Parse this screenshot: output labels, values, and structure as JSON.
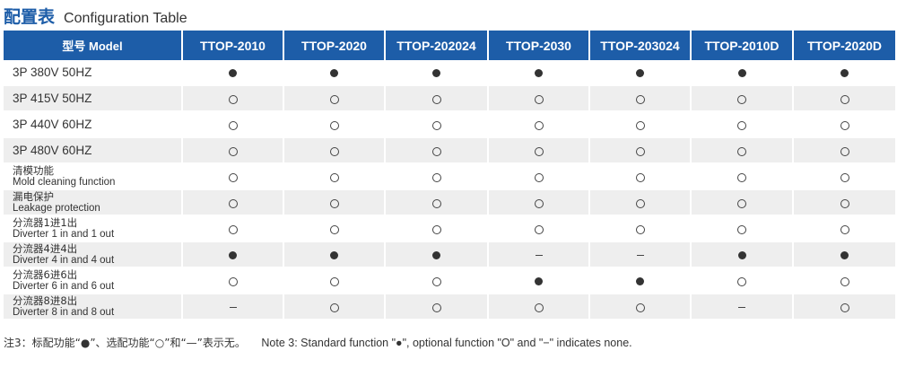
{
  "title": {
    "cn": "配置表",
    "en": "Configuration Table"
  },
  "table": {
    "header_label": "型号 Model",
    "columns": [
      "TTOP-2010",
      "TTOP-2020",
      "TTOP-202024",
      "TTOP-2030",
      "TTOP-203024",
      "TTOP-2010D",
      "TTOP-2020D"
    ],
    "rows": [
      {
        "label": "3P 380V 50HZ",
        "values": [
          "standard",
          "standard",
          "standard",
          "standard",
          "standard",
          "standard",
          "standard"
        ]
      },
      {
        "label": "3P 415V 50HZ",
        "values": [
          "optional",
          "optional",
          "optional",
          "optional",
          "optional",
          "optional",
          "optional"
        ]
      },
      {
        "label": "3P 440V 60HZ",
        "values": [
          "optional",
          "optional",
          "optional",
          "optional",
          "optional",
          "optional",
          "optional"
        ]
      },
      {
        "label": "3P 480V 60HZ",
        "values": [
          "optional",
          "optional",
          "optional",
          "optional",
          "optional",
          "optional",
          "optional"
        ]
      },
      {
        "label_cn": "清模功能",
        "label_en": "Mold cleaning function",
        "values": [
          "optional",
          "optional",
          "optional",
          "optional",
          "optional",
          "optional",
          "optional"
        ]
      },
      {
        "label_cn": "漏电保护",
        "label_en": "Leakage protection",
        "values": [
          "optional",
          "optional",
          "optional",
          "optional",
          "optional",
          "optional",
          "optional"
        ]
      },
      {
        "label_cn": "分流器1进1出",
        "label_en": "Diverter 1 in and 1 out",
        "values": [
          "optional",
          "optional",
          "optional",
          "optional",
          "optional",
          "optional",
          "optional"
        ]
      },
      {
        "label_cn": "分流器4进4出",
        "label_en": "Diverter 4 in and 4 out",
        "values": [
          "standard",
          "standard",
          "standard",
          "none",
          "none",
          "standard",
          "standard"
        ]
      },
      {
        "label_cn": "分流器6进6出",
        "label_en": "Diverter 6 in and 6 out",
        "values": [
          "optional",
          "optional",
          "optional",
          "standard",
          "standard",
          "optional",
          "optional"
        ]
      },
      {
        "label_cn": "分流器8进8出",
        "label_en": "Diverter 8 in and 8 out",
        "values": [
          "none",
          "optional",
          "optional",
          "optional",
          "optional",
          "none",
          "optional"
        ]
      }
    ]
  },
  "note": {
    "cn": "注3：标配功能“●”、选配功能“○”和“—”表示无。",
    "en": "Note 3: Standard function \"●\", optional function \"O\" and \"−\" indicates none."
  },
  "colors": {
    "header_bg": "#1d5da8",
    "title_cn": "#1d5da8",
    "row_alt": "#eeeeee",
    "text": "#333333"
  },
  "icons": {
    "standard": "filled-circle-icon",
    "optional": "hollow-circle-icon",
    "none": "dash-icon"
  }
}
